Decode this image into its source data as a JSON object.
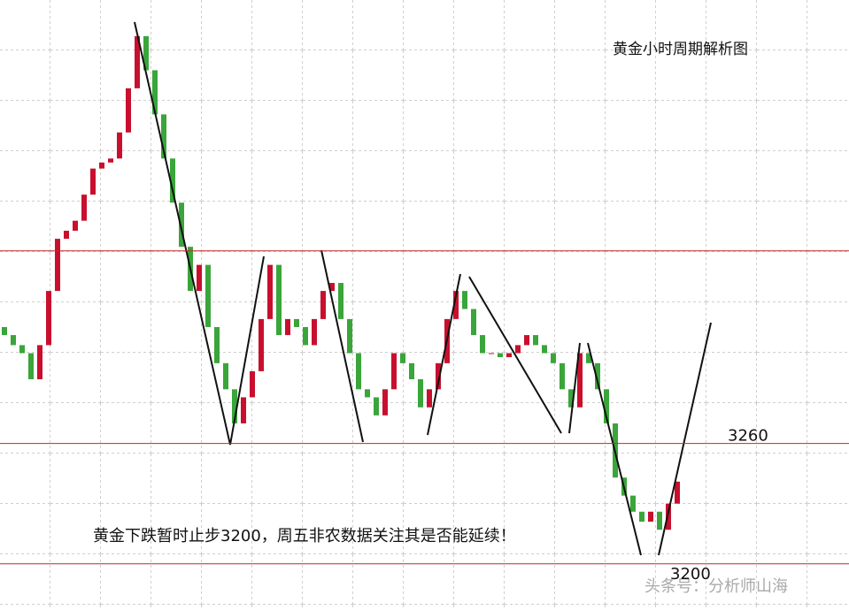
{
  "chart_data": {
    "type": "candlestick",
    "title": "黄金小时周期解析图",
    "annotation": "黄金下跌暂时止步3200，周五非农数据关注其是否能延续！",
    "watermark": "头条号：分析师山海",
    "ylim": [
      3177,
      3481
    ],
    "hlines": [
      3356,
      3260,
      3200
    ],
    "hline_labeled": [
      false,
      true,
      true
    ],
    "level_color": "#c0282d",
    "up_color": "#c8102e",
    "down_color": "#3aa53a",
    "open": [
      3318,
      3314,
      3309,
      3305,
      3292,
      3309,
      3336,
      3362,
      3366,
      3371,
      3384,
      3397,
      3400,
      3402,
      3415,
      3437,
      3463,
      3446,
      3424,
      3402,
      3380,
      3358,
      3336,
      3349,
      3318,
      3300,
      3287,
      3270,
      3283,
      3296,
      3322,
      3349,
      3314,
      3322,
      3318,
      3309,
      3322,
      3336,
      3340,
      3322,
      3305,
      3287,
      3283,
      3274,
      3287,
      3305,
      3300,
      3292,
      3278,
      3287,
      3300,
      3322,
      3336,
      3327,
      3314,
      3305,
      3305,
      3303,
      3305,
      3309,
      3314,
      3309,
      3305,
      3300,
      3287,
      3278,
      3305,
      3300,
      3287,
      3270,
      3243,
      3234,
      3226,
      3221,
      3226,
      3217,
      3230
    ],
    "close": [
      3314,
      3309,
      3305,
      3292,
      3309,
      3336,
      3362,
      3366,
      3371,
      3384,
      3397,
      3400,
      3402,
      3415,
      3437,
      3463,
      3446,
      3424,
      3402,
      3380,
      3358,
      3336,
      3349,
      3318,
      3300,
      3287,
      3270,
      3283,
      3296,
      3322,
      3349,
      3314,
      3322,
      3318,
      3309,
      3322,
      3336,
      3340,
      3322,
      3305,
      3287,
      3283,
      3274,
      3287,
      3305,
      3300,
      3292,
      3278,
      3287,
      3300,
      3322,
      3336,
      3327,
      3314,
      3305,
      3305,
      3303,
      3305,
      3309,
      3314,
      3309,
      3305,
      3300,
      3287,
      3278,
      3305,
      3300,
      3287,
      3270,
      3243,
      3234,
      3226,
      3221,
      3226,
      3217,
      3230,
      3241
    ]
  }
}
